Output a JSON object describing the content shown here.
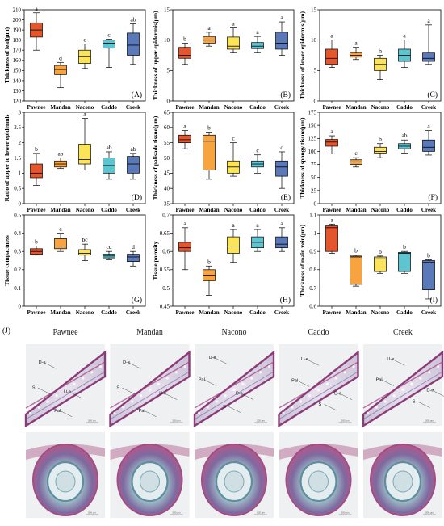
{
  "categories": [
    "Pawnee",
    "Mandan",
    "Nacono",
    "Caddo",
    "Creek"
  ],
  "colors": [
    "#e4572e",
    "#f6a340",
    "#fbe35a",
    "#5ec4cf",
    "#5b78b7"
  ],
  "chart_data": [
    {
      "type": "box",
      "panel": "(A)",
      "ylabel": "Thickness of leaf(μm)",
      "ylim": [
        120,
        210
      ],
      "yticks": [
        120,
        130,
        140,
        150,
        160,
        170,
        180,
        190,
        200,
        210
      ],
      "series": [
        {
          "category": "Pawnee",
          "min": 170,
          "q1": 183,
          "median": 190,
          "q3": 197,
          "max": 207,
          "letter": "a"
        },
        {
          "category": "Mandan",
          "min": 133,
          "q1": 146,
          "median": 151,
          "q3": 155,
          "max": 158,
          "letter": "d"
        },
        {
          "category": "Nacono",
          "min": 152,
          "q1": 157,
          "median": 164,
          "q3": 170,
          "max": 176,
          "letter": "c"
        },
        {
          "category": "Caddo",
          "min": 153,
          "q1": 172,
          "median": 177,
          "q3": 180,
          "max": 181,
          "letter": "c"
        },
        {
          "category": "Creek",
          "min": 156,
          "q1": 165,
          "median": 175,
          "q3": 187,
          "max": 196,
          "letter": "ab"
        }
      ]
    },
    {
      "type": "box",
      "panel": "(B)",
      "ylabel": "Thickness of upper epidermis(μm)",
      "ylim": [
        0,
        15
      ],
      "yticks": [
        0,
        5,
        10,
        15
      ],
      "series": [
        {
          "category": "Pawnee",
          "min": 6,
          "q1": 7,
          "median": 7.5,
          "q3": 8.8,
          "max": 9.5,
          "letter": "b"
        },
        {
          "category": "Mandan",
          "min": 9,
          "q1": 9.5,
          "median": 10,
          "q3": 10.6,
          "max": 11.3,
          "letter": "a"
        },
        {
          "category": "Nacono",
          "min": 8,
          "q1": 8.5,
          "median": 9,
          "q3": 10.5,
          "max": 12,
          "letter": "a"
        },
        {
          "category": "Caddo",
          "min": 8,
          "q1": 8.6,
          "median": 9,
          "q3": 9.6,
          "max": 10.6,
          "letter": "a"
        },
        {
          "category": "Creek",
          "min": 7.5,
          "q1": 8.5,
          "median": 9.5,
          "q3": 11.3,
          "max": 13,
          "letter": "a"
        }
      ]
    },
    {
      "type": "box",
      "panel": "(C)",
      "ylabel": "Thickness of lower epidermis(μm)",
      "ylim": [
        0,
        15
      ],
      "yticks": [
        0,
        5,
        10,
        15
      ],
      "series": [
        {
          "category": "Pawnee",
          "min": 5.5,
          "q1": 6,
          "median": 7,
          "q3": 8.5,
          "max": 10,
          "letter": "a"
        },
        {
          "category": "Mandan",
          "min": 6.8,
          "q1": 7.2,
          "median": 7.5,
          "q3": 8,
          "max": 8.8,
          "letter": "a"
        },
        {
          "category": "Nacono",
          "min": 3.5,
          "q1": 5,
          "median": 6,
          "q3": 7,
          "max": 7.5,
          "letter": "b"
        },
        {
          "category": "Caddo",
          "min": 5.5,
          "q1": 6.5,
          "median": 7.5,
          "q3": 8.5,
          "max": 10,
          "letter": "a"
        },
        {
          "category": "Creek",
          "min": 6,
          "q1": 6.5,
          "median": 7,
          "q3": 8,
          "max": 12.5,
          "letter": "a"
        }
      ]
    },
    {
      "type": "box",
      "panel": "(D)",
      "ylabel": "Ratio of upper to lower epidermis",
      "ylim": [
        0,
        3
      ],
      "yticks": [
        0,
        0.5,
        1,
        1.5,
        2,
        2.5,
        3
      ],
      "series": [
        {
          "category": "Pawnee",
          "min": 0.6,
          "q1": 0.85,
          "median": 1,
          "q3": 1.3,
          "max": 1.65,
          "letter": "b"
        },
        {
          "category": "Mandan",
          "min": 1.15,
          "q1": 1.2,
          "median": 1.3,
          "q3": 1.4,
          "max": 1.5,
          "letter": "ab"
        },
        {
          "category": "Nacono",
          "min": 1.1,
          "q1": 1.3,
          "median": 1.45,
          "q3": 1.95,
          "max": 2.8,
          "letter": "a"
        },
        {
          "category": "Caddo",
          "min": 0.8,
          "q1": 1,
          "median": 1.25,
          "q3": 1.5,
          "max": 1.7,
          "letter": "ab"
        },
        {
          "category": "Creek",
          "min": 0.8,
          "q1": 1,
          "median": 1.3,
          "q3": 1.55,
          "max": 1.65,
          "letter": "ab"
        }
      ]
    },
    {
      "type": "box",
      "panel": "(E)",
      "ylabel": "Thickness of palisade tissue(μm)",
      "ylim": [
        35,
        65
      ],
      "yticks": [
        35,
        40,
        45,
        50,
        55,
        60,
        65
      ],
      "series": [
        {
          "category": "Pawnee",
          "min": 53,
          "q1": 55,
          "median": 56,
          "q3": 57.5,
          "max": 59,
          "letter": "a"
        },
        {
          "category": "Mandan",
          "min": 43,
          "q1": 46,
          "median": 55.5,
          "q3": 57.5,
          "max": 58.5,
          "letter": "b"
        },
        {
          "category": "Nacono",
          "min": 44,
          "q1": 45,
          "median": 47,
          "q3": 49,
          "max": 55,
          "letter": "c"
        },
        {
          "category": "Caddo",
          "min": 45,
          "q1": 47,
          "median": 48,
          "q3": 49,
          "max": 51,
          "letter": "c"
        },
        {
          "category": "Creek",
          "min": 40,
          "q1": 44,
          "median": 47,
          "q3": 49,
          "max": 52,
          "letter": "c"
        }
      ]
    },
    {
      "type": "box",
      "panel": "(F)",
      "ylabel": "Thickness of spongy tissue(μm)",
      "ylim": [
        0,
        175
      ],
      "yticks": [
        0,
        25,
        50,
        75,
        100,
        125,
        150,
        175
      ],
      "series": [
        {
          "category": "Pawnee",
          "min": 95,
          "q1": 110,
          "median": 118,
          "q3": 123,
          "max": 130,
          "letter": "a"
        },
        {
          "category": "Mandan",
          "min": 70,
          "q1": 75,
          "median": 80,
          "q3": 84,
          "max": 88,
          "letter": "c"
        },
        {
          "category": "Nacono",
          "min": 88,
          "q1": 97,
          "median": 100,
          "q3": 108,
          "max": 115,
          "letter": "b"
        },
        {
          "category": "Caddo",
          "min": 97,
          "q1": 105,
          "median": 110,
          "q3": 115,
          "max": 122,
          "letter": "ab"
        },
        {
          "category": "Creek",
          "min": 93,
          "q1": 100,
          "median": 108,
          "q3": 122,
          "max": 140,
          "letter": "a"
        }
      ]
    },
    {
      "type": "box",
      "panel": "(G)",
      "ylabel": "Tissue compactness",
      "ylim": [
        0,
        0.5
      ],
      "yticks": [
        0,
        0.1,
        0.2,
        0.3,
        0.4,
        0.5
      ],
      "series": [
        {
          "category": "Pawnee",
          "min": 0.28,
          "q1": 0.285,
          "median": 0.3,
          "q3": 0.315,
          "max": 0.33,
          "letter": "b"
        },
        {
          "category": "Mandan",
          "min": 0.3,
          "q1": 0.315,
          "median": 0.33,
          "q3": 0.37,
          "max": 0.4,
          "letter": "a"
        },
        {
          "category": "Nacono",
          "min": 0.25,
          "q1": 0.28,
          "median": 0.29,
          "q3": 0.31,
          "max": 0.34,
          "letter": "bc"
        },
        {
          "category": "Caddo",
          "min": 0.255,
          "q1": 0.265,
          "median": 0.275,
          "q3": 0.285,
          "max": 0.3,
          "letter": "cd"
        },
        {
          "category": "Creek",
          "min": 0.22,
          "q1": 0.245,
          "median": 0.27,
          "q3": 0.285,
          "max": 0.3,
          "letter": "d"
        }
      ]
    },
    {
      "type": "box",
      "panel": "(H)",
      "ylabel": "Tissue porosity",
      "ylim": [
        0.45,
        0.7
      ],
      "yticks": [
        0.45,
        0.5,
        0.55,
        0.6,
        0.65,
        0.7
      ],
      "series": [
        {
          "category": "Pawnee",
          "min": 0.55,
          "q1": 0.6,
          "median": 0.61,
          "q3": 0.625,
          "max": 0.665,
          "letter": "a"
        },
        {
          "category": "Mandan",
          "min": 0.48,
          "q1": 0.52,
          "median": 0.535,
          "q3": 0.55,
          "max": 0.56,
          "letter": "b"
        },
        {
          "category": "Nacono",
          "min": 0.57,
          "q1": 0.595,
          "median": 0.615,
          "q3": 0.64,
          "max": 0.66,
          "letter": "a"
        },
        {
          "category": "Caddo",
          "min": 0.6,
          "q1": 0.61,
          "median": 0.625,
          "q3": 0.64,
          "max": 0.66,
          "letter": "a"
        },
        {
          "category": "Creek",
          "min": 0.6,
          "q1": 0.61,
          "median": 0.62,
          "q3": 0.64,
          "max": 0.665,
          "letter": "a"
        }
      ]
    },
    {
      "type": "box",
      "panel": "(I)",
      "ylabel": "Thickness of main vein(μm)",
      "ylim": [
        0.6,
        1.1
      ],
      "yticks": [
        0.6,
        0.7,
        0.8,
        0.9,
        1,
        1.1
      ],
      "series": [
        {
          "category": "Pawnee",
          "min": 0.89,
          "q1": 0.9,
          "median": 1.03,
          "q3": 1.04,
          "max": 1.05,
          "letter": "a"
        },
        {
          "category": "Mandan",
          "min": 0.71,
          "q1": 0.72,
          "median": 0.87,
          "q3": 0.875,
          "max": 0.88,
          "letter": "b"
        },
        {
          "category": "Nacono",
          "min": 0.78,
          "q1": 0.79,
          "median": 0.86,
          "q3": 0.87,
          "max": 0.875,
          "letter": "b"
        },
        {
          "category": "Caddo",
          "min": 0.78,
          "q1": 0.79,
          "median": 0.89,
          "q3": 0.895,
          "max": 0.9,
          "letter": "b"
        },
        {
          "category": "Creek",
          "min": 0.64,
          "q1": 0.69,
          "median": 0.84,
          "q3": 0.85,
          "max": 0.855,
          "letter": "b"
        }
      ]
    }
  ],
  "micrographs": {
    "panel_label": "(J)",
    "columns": [
      "Pawnee",
      "Mandan",
      "Nacono",
      "Caddo",
      "Creek"
    ],
    "scale_bar": "200 μm",
    "leaf_annotations": [
      [
        {
          "label": "D-e"
        },
        {
          "label": "S"
        },
        {
          "label": "U-e"
        },
        {
          "label": "Pal"
        }
      ],
      [
        {
          "label": "D-e"
        },
        {
          "label": "S"
        },
        {
          "label": "U-e"
        },
        {
          "label": "Pal"
        }
      ],
      [
        {
          "label": "U-e"
        },
        {
          "label": "Pal"
        },
        {
          "label": "D-e"
        },
        {
          "label": "S"
        }
      ],
      [
        {
          "label": "U-e"
        },
        {
          "label": "Pal"
        },
        {
          "label": "D-e"
        },
        {
          "label": "S"
        }
      ],
      [
        {
          "label": "U-e"
        },
        {
          "label": "Pal"
        },
        {
          "label": "D-e"
        },
        {
          "label": "S"
        }
      ]
    ]
  }
}
